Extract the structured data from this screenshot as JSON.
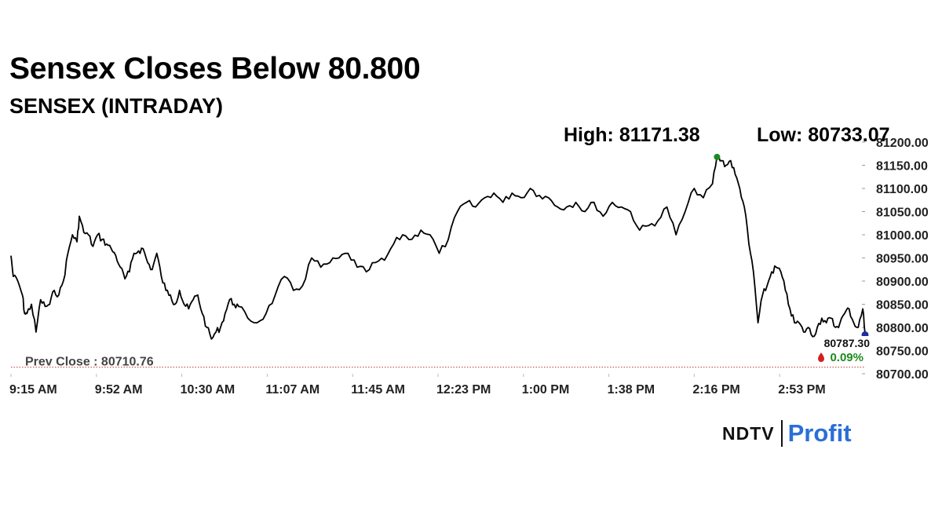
{
  "headline": "Sensex Closes Below 80.800",
  "brand": {
    "ndtv": "NDTV",
    "profit": "Profit",
    "profit_color": "#2a6fd6"
  },
  "chart_data": {
    "type": "line",
    "title": "SENSEX (INTRADAY)",
    "high_label": "High: 81171.38",
    "low_label": "Low: 80733.07",
    "high_value": 81171.38,
    "low_value": 80733.07,
    "prev_close_label": "Prev Close : 80710.76",
    "prev_close": 80710.76,
    "last_value_label": "80787.30",
    "change_label": "0.09%",
    "last_value": 80787.3,
    "ylim": [
      80700,
      81200
    ],
    "y_ticks": [
      "81200.00",
      "81150.00",
      "81100.00",
      "81050.00",
      "81000.00",
      "80950.00",
      "80900.00",
      "80850.00",
      "80800.00",
      "80750.00",
      "80700.00"
    ],
    "x_ticks": [
      "9:15 AM",
      "9:52 AM",
      "10:30 AM",
      "11:07 AM",
      "11:45 AM",
      "12:23 PM",
      "1:00 PM",
      "1:38 PM",
      "2:16 PM",
      "2:53 PM"
    ],
    "xlim_minutes": [
      0,
      375
    ],
    "grid": false,
    "colors": {
      "line": "#000000",
      "prev_close": "#c0392b",
      "high_marker": "#1e8a1e",
      "last_marker": "#1a2fa0",
      "change": "#1e8a1e",
      "down_drop": "#d12020"
    },
    "series": [
      {
        "t": [
          0,
          1,
          3,
          5,
          6,
          7,
          9,
          11,
          13,
          15,
          17,
          19,
          21,
          23,
          25,
          27,
          29,
          30,
          32,
          34,
          36,
          38,
          40,
          42,
          44,
          46,
          48,
          50,
          52,
          54,
          56,
          58,
          60,
          62,
          64,
          66,
          68,
          70,
          72,
          74,
          76,
          78,
          80,
          82,
          84,
          86,
          88,
          90,
          92,
          94,
          96,
          98,
          100,
          104,
          108,
          112,
          116,
          120,
          124,
          128,
          132,
          136,
          140,
          144,
          148,
          152,
          156,
          160,
          164,
          168,
          172,
          176,
          180,
          184,
          188,
          192,
          196,
          200,
          204,
          208,
          212,
          216,
          220,
          224,
          228,
          232,
          236,
          240,
          244,
          248,
          252,
          256,
          260,
          264,
          268,
          272,
          276,
          280,
          284,
          288,
          292,
          296,
          300,
          304,
          308,
          310,
          312,
          314,
          316,
          318,
          320,
          322,
          324,
          326,
          328,
          330,
          332,
          334,
          336,
          338,
          340,
          342,
          344,
          346,
          348,
          350,
          352,
          354,
          356,
          358,
          360,
          362,
          364,
          366,
          368,
          370,
          372,
          374,
          375
        ],
        "y": [
          80955,
          80910,
          80900,
          80870,
          80830,
          80830,
          80850,
          80790,
          80860,
          80845,
          80850,
          80880,
          80870,
          80900,
          80960,
          81000,
          80985,
          81040,
          81005,
          81000,
          80975,
          81000,
          80990,
          80980,
          80970,
          80955,
          80930,
          80905,
          80920,
          80960,
          80965,
          80970,
          80940,
          80925,
          80960,
          80910,
          80880,
          80870,
          80850,
          80880,
          80850,
          80840,
          80860,
          80870,
          80830,
          80800,
          80775,
          80790,
          80800,
          80830,
          80860,
          80850,
          80845,
          80820,
          80810,
          80830,
          80870,
          80910,
          80880,
          80890,
          80950,
          80930,
          80940,
          80950,
          80960,
          80930,
          80920,
          80940,
          80945,
          80980,
          81000,
          80990,
          81010,
          81000,
          80960,
          80990,
          81050,
          81070,
          81060,
          81080,
          81090,
          81070,
          81090,
          81080,
          81100,
          81085,
          81080,
          81060,
          81060,
          81070,
          81050,
          81070,
          81040,
          81070,
          81060,
          81050,
          81010,
          81020,
          81030,
          81060,
          81000,
          81050,
          81100,
          81080,
          81110,
          81170,
          81160,
          81150,
          81160,
          81130,
          81100,
          81060,
          80980,
          80920,
          80810,
          80870,
          80890,
          80920,
          80930,
          80920,
          80880,
          80840,
          80810,
          80810,
          80790,
          80800,
          80780,
          80800,
          80820,
          80810,
          80820,
          80800,
          80810,
          80830,
          80840,
          80810,
          80800,
          80840,
          80787.3
        ]
      }
    ]
  }
}
